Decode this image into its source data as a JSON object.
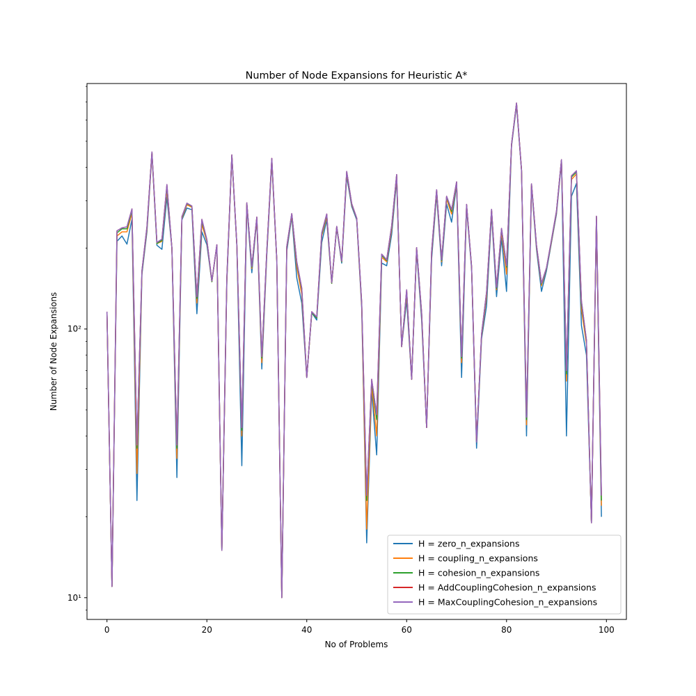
{
  "chart_data": {
    "type": "line",
    "title": "Number of Node Expansions for Heuristic A*",
    "xlabel": "No of Problems",
    "ylabel": "Number of Node Expansions",
    "yscale": "log",
    "xlim": [
      -4,
      104
    ],
    "ylim": [
      8.3,
      820
    ],
    "x_ticks": [
      0,
      20,
      40,
      60,
      80,
      100
    ],
    "x_tick_labels": [
      "0",
      "20",
      "40",
      "60",
      "80",
      "100"
    ],
    "y_ticks": [
      10,
      100
    ],
    "y_tick_labels": [
      "10¹",
      "10²"
    ],
    "grid": false,
    "legend_position": "lower-right",
    "series": [
      {
        "name": "H = zero_n_expansions",
        "color": "#1f77b4",
        "values": [
          115,
          11,
          212,
          222,
          207,
          256,
          23,
          160,
          230,
          450,
          205,
          198,
          310,
          200,
          28,
          255,
          282,
          278,
          114,
          230,
          206,
          150,
          205,
          15,
          150,
          440,
          205,
          31,
          286,
          162,
          256,
          71,
          188,
          420,
          180,
          10,
          195,
          262,
          155,
          125,
          66,
          115,
          108,
          210,
          255,
          148,
          238,
          176,
          370,
          286,
          255,
          120,
          16,
          59,
          34,
          176,
          172,
          225,
          360,
          86,
          128,
          65,
          195,
          108,
          43,
          182,
          316,
          172,
          292,
          250,
          345,
          66,
          282,
          168,
          36,
          92,
          122,
          268,
          132,
          218,
          138,
          480,
          680,
          388,
          40,
          340,
          198,
          138,
          165,
          210,
          268,
          420,
          40,
          312,
          348,
          103,
          80,
          19,
          258,
          20
        ]
      },
      {
        "name": "H = coupling_n_expansions",
        "color": "#ff7f0e",
        "values": [
          115,
          11,
          222,
          230,
          230,
          270,
          29,
          163,
          235,
          452,
          208,
          212,
          330,
          200,
          33,
          258,
          290,
          284,
          125,
          245,
          212,
          150,
          205,
          15,
          152,
          442,
          206,
          40,
          292,
          168,
          258,
          75,
          192,
          426,
          180,
          10,
          200,
          266,
          170,
          135,
          66,
          115,
          110,
          222,
          262,
          148,
          240,
          178,
          380,
          290,
          258,
          122,
          18,
          62,
          40,
          185,
          178,
          235,
          370,
          86,
          135,
          65,
          200,
          112,
          43,
          190,
          324,
          178,
          305,
          268,
          350,
          75,
          288,
          170,
          38,
          94,
          132,
          275,
          140,
          230,
          160,
          485,
          690,
          390,
          44,
          345,
          202,
          145,
          168,
          212,
          272,
          425,
          64,
          360,
          378,
          118,
          88,
          19,
          260,
          22
        ]
      },
      {
        "name": "H = cohesion_n_expansions",
        "color": "#2ca02c",
        "values": [
          115,
          11,
          228,
          236,
          236,
          276,
          36,
          164,
          238,
          455,
          208,
          214,
          340,
          200,
          36,
          260,
          293,
          286,
          130,
          252,
          214,
          150,
          205,
          15,
          154,
          444,
          206,
          42,
          294,
          170,
          260,
          78,
          194,
          430,
          180,
          10,
          202,
          268,
          176,
          140,
          66,
          115,
          110,
          225,
          266,
          148,
          240,
          178,
          384,
          292,
          258,
          124,
          23,
          64,
          46,
          188,
          180,
          240,
          374,
          86,
          138,
          65,
          200,
          114,
          43,
          193,
          328,
          180,
          310,
          274,
          352,
          78,
          290,
          170,
          38,
          95,
          136,
          278,
          142,
          235,
          170,
          486,
          692,
          390,
          46,
          346,
          204,
          147,
          168,
          214,
          274,
          426,
          68,
          368,
          384,
          124,
          90,
          19,
          262,
          23
        ]
      },
      {
        "name": "H = AddCouplingCohesion_n_expansions",
        "color": "#d62728",
        "values": [
          116,
          11,
          232,
          238,
          240,
          280,
          37,
          165,
          240,
          456,
          210,
          216,
          345,
          200,
          37,
          262,
          294,
          287,
          132,
          256,
          215,
          151,
          206,
          15,
          155,
          445,
          207,
          43,
          295,
          171,
          261,
          79,
          195,
          432,
          181,
          10,
          203,
          269,
          178,
          142,
          66,
          116,
          111,
          228,
          268,
          149,
          241,
          179,
          386,
          293,
          259,
          125,
          24,
          65,
          48,
          190,
          181,
          242,
          376,
          86,
          140,
          65,
          201,
          115,
          43,
          195,
          330,
          181,
          312,
          278,
          353,
          79,
          291,
          171,
          38,
          96,
          137,
          279,
          143,
          237,
          172,
          487,
          694,
          391,
          47,
          347,
          205,
          148,
          169,
          215,
          275,
          427,
          70,
          372,
          388,
          127,
          91,
          19,
          263,
          24
        ]
      },
      {
        "name": "H = MaxCouplingCohesion_n_expansions",
        "color": "#9467bd",
        "values": [
          116,
          11,
          232,
          238,
          240,
          280,
          37,
          165,
          240,
          456,
          210,
          216,
          345,
          200,
          37,
          262,
          294,
          287,
          132,
          256,
          215,
          151,
          206,
          15,
          155,
          445,
          207,
          43,
          295,
          171,
          261,
          79,
          195,
          432,
          181,
          10,
          203,
          269,
          178,
          142,
          66,
          116,
          111,
          228,
          268,
          149,
          241,
          179,
          386,
          293,
          259,
          125,
          24,
          65,
          48,
          190,
          181,
          242,
          376,
          86,
          140,
          65,
          201,
          115,
          43,
          195,
          330,
          181,
          312,
          278,
          353,
          79,
          291,
          171,
          38,
          96,
          137,
          279,
          143,
          237,
          172,
          487,
          694,
          391,
          47,
          347,
          205,
          148,
          169,
          215,
          275,
          427,
          70,
          372,
          388,
          127,
          91,
          19,
          263,
          24
        ]
      }
    ]
  }
}
